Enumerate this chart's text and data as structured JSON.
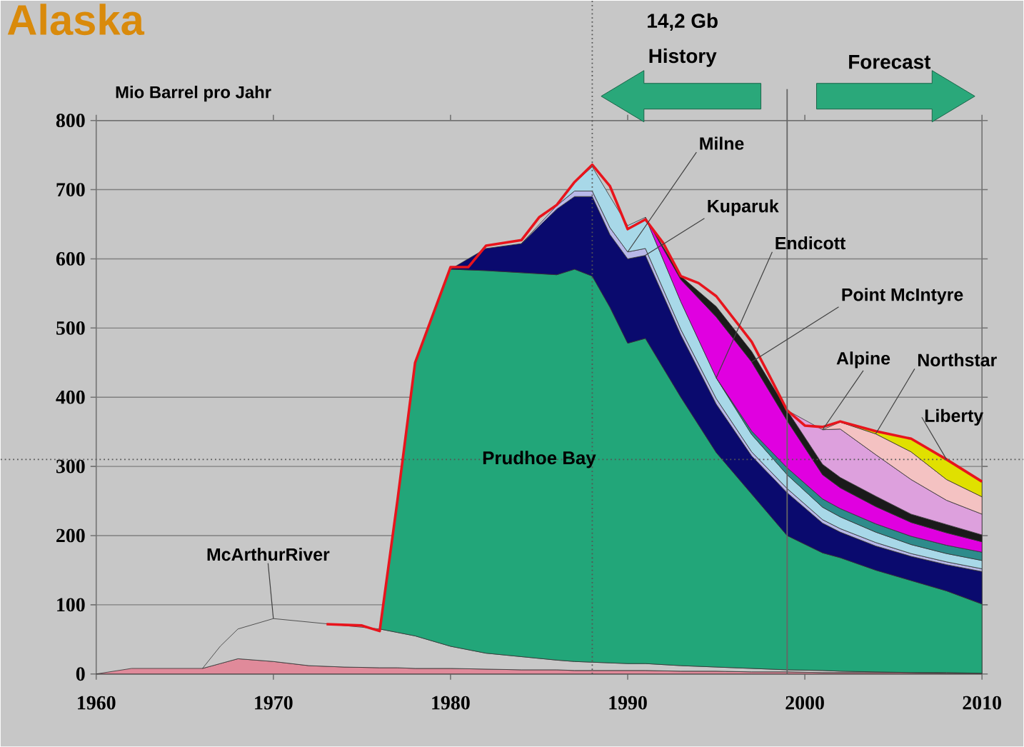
{
  "chart_data": {
    "type": "area",
    "stacked": true,
    "title": "Alaska",
    "ylabel": "Mio Barrel pro Jahr",
    "x": [
      1960,
      1962,
      1966,
      1967,
      1968,
      1970,
      1972,
      1974,
      1976,
      1977,
      1978,
      1980,
      1982,
      1984,
      1986,
      1987,
      1988,
      1989,
      1990,
      1991,
      1993,
      1995,
      1997,
      1999,
      2001,
      2002,
      2004,
      2006,
      2008,
      2010
    ],
    "xlim": [
      1960,
      2010
    ],
    "xticks": [
      1960,
      1970,
      1980,
      1990,
      2000,
      2010
    ],
    "ylim": [
      0,
      800
    ],
    "yticks": [
      0,
      100,
      200,
      300,
      400,
      500,
      600,
      700,
      800
    ],
    "grid": "y",
    "legend": false,
    "marker": "none",
    "series": [
      {
        "color": "#e08a9a",
        "values": [
          0,
          8,
          8,
          15,
          22,
          18,
          12,
          10,
          9,
          9,
          8,
          8,
          7,
          6,
          6,
          5,
          5,
          5,
          5,
          5,
          4,
          4,
          3,
          3,
          2,
          2,
          2,
          2,
          1,
          1
        ]
      },
      {
        "color": "#c8c8c8",
        "values": [
          null,
          null,
          0,
          25,
          43,
          62,
          63,
          60,
          56,
          51,
          47,
          32,
          23,
          19,
          14,
          13,
          12,
          11,
          10,
          10,
          8,
          6,
          5,
          3,
          3,
          2,
          1,
          0,
          1,
          0
        ]
      },
      {
        "color": "#22a679",
        "values": [
          null,
          null,
          null,
          null,
          null,
          null,
          null,
          null,
          0,
          190,
          395,
          545,
          553,
          555,
          557,
          567,
          558,
          514,
          463,
          470,
          388,
          310,
          252,
          194,
          170,
          164,
          147,
          133,
          118,
          100
        ]
      },
      {
        "color": "#0a0a6e",
        "values": [
          null,
          null,
          null,
          null,
          null,
          null,
          null,
          null,
          null,
          null,
          null,
          0,
          32,
          42,
          95,
          105,
          115,
          105,
          122,
          120,
          90,
          70,
          55,
          62,
          43,
          37,
          35,
          35,
          38,
          47
        ]
      },
      {
        "color": "#b8b8e8",
        "values": [
          null,
          null,
          null,
          null,
          null,
          null,
          null,
          null,
          null,
          null,
          null,
          null,
          null,
          0,
          5,
          8,
          8,
          10,
          10,
          10,
          8,
          8,
          6,
          6,
          5,
          5,
          5,
          4,
          4,
          4
        ]
      },
      {
        "color": "#a8d8e8",
        "values": [
          null,
          null,
          null,
          null,
          null,
          null,
          null,
          null,
          null,
          null,
          null,
          null,
          null,
          null,
          0,
          12,
          35,
          45,
          38,
          45,
          40,
          30,
          25,
          20,
          18,
          17,
          15,
          13,
          12,
          12
        ]
      },
      {
        "color": "#2e8b8b",
        "values": [
          null,
          null,
          null,
          null,
          null,
          null,
          null,
          null,
          null,
          null,
          null,
          null,
          null,
          null,
          null,
          null,
          null,
          null,
          null,
          null,
          null,
          0,
          5,
          10,
          12,
          12,
          12,
          12,
          12,
          12
        ]
      },
      {
        "color": "#e000e0",
        "values": [
          null,
          null,
          null,
          null,
          null,
          null,
          null,
          null,
          null,
          null,
          null,
          null,
          null,
          null,
          null,
          null,
          null,
          null,
          null,
          0,
          32,
          88,
          100,
          68,
          35,
          30,
          25,
          20,
          18,
          15
        ]
      },
      {
        "color": "#1a1a1a",
        "values": [
          null,
          null,
          null,
          null,
          null,
          null,
          null,
          null,
          null,
          null,
          null,
          null,
          null,
          null,
          null,
          null,
          null,
          null,
          null,
          0,
          5,
          15,
          15,
          15,
          15,
          15,
          15,
          12,
          12,
          10
        ]
      },
      {
        "color": "#dda0dd",
        "values": [
          null,
          null,
          null,
          null,
          null,
          null,
          null,
          null,
          null,
          null,
          null,
          null,
          null,
          null,
          null,
          null,
          null,
          null,
          null,
          null,
          null,
          null,
          null,
          0,
          50,
          70,
          60,
          50,
          35,
          30
        ]
      },
      {
        "color": "#f4c2c2",
        "values": [
          null,
          null,
          null,
          null,
          null,
          null,
          null,
          null,
          null,
          null,
          null,
          null,
          null,
          null,
          null,
          null,
          null,
          null,
          null,
          null,
          null,
          null,
          null,
          null,
          0,
          10,
          30,
          40,
          30,
          25
        ]
      },
      {
        "color": "#e0e000",
        "values": [
          null,
          null,
          null,
          null,
          null,
          null,
          null,
          null,
          null,
          null,
          null,
          null,
          null,
          null,
          null,
          null,
          null,
          null,
          null,
          null,
          null,
          null,
          null,
          null,
          null,
          0,
          3,
          19,
          29,
          22
        ]
      },
      {
        "type": "line",
        "color": "#e8141c",
        "x": [
          1973,
          1975,
          1976,
          1977,
          1978,
          1980,
          1981,
          1982,
          1984,
          1985,
          1986,
          1987,
          1988,
          1989,
          1990,
          1991,
          1992,
          1993,
          1994,
          1995,
          1997,
          1998,
          1999,
          2000,
          2001,
          2002,
          2004,
          2006,
          2008,
          2010
        ],
        "values": [
          72,
          70,
          62,
          250,
          450,
          588,
          588,
          619,
          627,
          660,
          678,
          711,
          736,
          705,
          643,
          657,
          623,
          575,
          565,
          546,
          480,
          431,
          381,
          359,
          357,
          365,
          351,
          340,
          310,
          278
        ]
      }
    ],
    "ref_lines": [
      {
        "axis": "x",
        "value": 1988,
        "line_style": "dotted",
        "color": "#555555"
      },
      {
        "axis": "x",
        "value": 1999,
        "line_style": "solid",
        "color": "#666666"
      },
      {
        "axis": "y",
        "value": 310,
        "line_style": "dotted",
        "color": "#555555"
      }
    ],
    "annotations": [
      "14,2 Gb",
      "History",
      "Forecast",
      {
        "text": "McArthurRiver",
        "x": 1970,
        "y": 80
      },
      {
        "text": "Prudhoe Bay",
        "x": 1985,
        "y": 310
      },
      {
        "text": "Milne",
        "x": 1990,
        "y": 610
      },
      {
        "text": "Kuparuk",
        "x": 1991,
        "y": 605
      },
      {
        "text": "Endicott",
        "x": 1995,
        "y": 428
      },
      {
        "text": "Point McIntyre",
        "x": 1997,
        "y": 451
      },
      {
        "text": "Alpine",
        "x": 2001,
        "y": 353
      },
      {
        "text": "Northstar",
        "x": 2004,
        "y": 347
      },
      {
        "text": "Liberty",
        "x": 2008,
        "y": 310
      }
    ]
  }
}
